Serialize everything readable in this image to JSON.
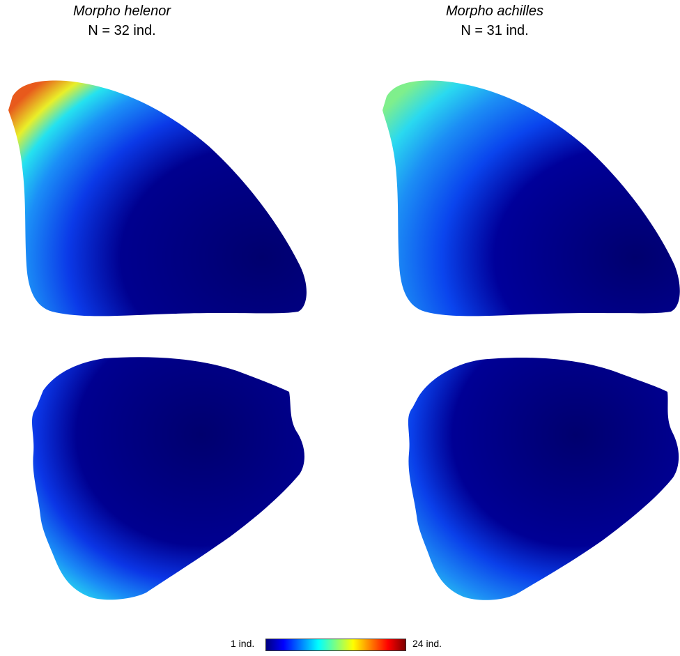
{
  "panels": [
    {
      "species": "Morpho helenor",
      "sample_size": "N = 32 ind."
    },
    {
      "species": "Morpho achilles",
      "sample_size": "N = 31 ind."
    }
  ],
  "colorbar": {
    "min_label": "1 ind.",
    "max_label": "24 ind.",
    "colormap": [
      "#00007f",
      "#0000ff",
      "#007fff",
      "#00ffff",
      "#7fff7f",
      "#ffff00",
      "#ff7f00",
      "#ff0000",
      "#7f0000"
    ]
  },
  "colors": {
    "background": "#ffffff",
    "wing_core": "#00008a",
    "wing_mid": "#0a3cf0",
    "wing_edge_light": "#19d6f5",
    "wing_edge_warm": "#f5e61e",
    "wing_edge_hot": "#e8401a"
  }
}
